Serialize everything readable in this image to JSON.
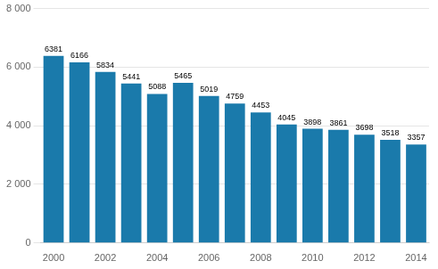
{
  "chart_data": {
    "type": "bar",
    "categories": [
      "2000",
      null,
      "2002",
      null,
      "2004",
      null,
      "2006",
      null,
      "2008",
      null,
      "2010",
      null,
      "2012",
      null,
      "2014"
    ],
    "values": [
      6381,
      6166,
      5834,
      5441,
      5088,
      5465,
      5019,
      4759,
      4453,
      4045,
      3898,
      3861,
      3698,
      3518,
      3357
    ],
    "color": "#1a7aab",
    "ylim": [
      0,
      8000
    ],
    "yticks": [
      0,
      {
        "value": 2000,
        "label": "2 000"
      },
      {
        "value": 4000,
        "label": "4 000"
      },
      {
        "value": 6000,
        "label": "6 000"
      },
      {
        "value": 8000,
        "label": "8 000"
      }
    ],
    "grid": true,
    "data_labels": true
  }
}
